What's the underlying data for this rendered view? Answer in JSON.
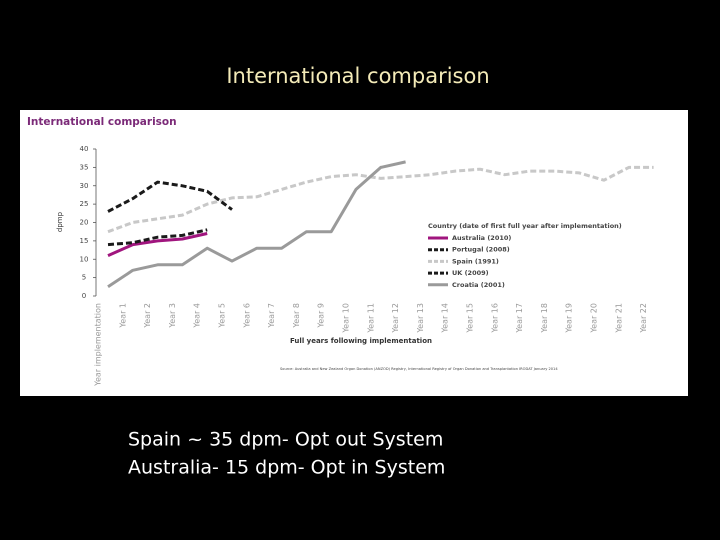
{
  "slide_title": "International comparison",
  "chart_data": {
    "type": "line",
    "title": "International comparison",
    "y_label": "dpmp",
    "x_label": "Full years following implementation",
    "source": "Source: Australia and New Zealand Organ Donation (ANZOD) Registry, International Registry of Organ Donation and Transplantation IRODAT January 2014",
    "legend_title": "Country (date of first full year after implementation)",
    "categories": [
      "Year implementation",
      "Year 1",
      "Year 2",
      "Year 3",
      "Year 4",
      "Year 5",
      "Year 6",
      "Year 7",
      "Year 8",
      "Year 9",
      "Year 10",
      "Year 11",
      "Year 12",
      "Year 13",
      "Year 14",
      "Year 15",
      "Year 16",
      "Year 17",
      "Year 18",
      "Year 19",
      "Year 20",
      "Year 21",
      "Year 22"
    ],
    "series": [
      {
        "name": "Australia (2010)",
        "color": "#a0157e",
        "dash": "solid",
        "values": [
          11,
          14,
          15,
          15.5,
          17,
          null,
          null,
          null,
          null,
          null,
          null,
          null,
          null,
          null,
          null,
          null,
          null,
          null,
          null,
          null,
          null,
          null,
          null
        ]
      },
      {
        "name": "Portugal (2008)",
        "color": "#1a1a1a",
        "dash": "dashed",
        "values": [
          14,
          14.5,
          16,
          16.5,
          18,
          null,
          null,
          null,
          null,
          null,
          null,
          null,
          null,
          null,
          null,
          null,
          null,
          null,
          null,
          null,
          null,
          null,
          null
        ]
      },
      {
        "name": "Spain (1991)",
        "color": "#c8c8c8",
        "dash": "dashed",
        "values": [
          17.5,
          20,
          21,
          22,
          25,
          26.7,
          27,
          29,
          31,
          32.5,
          33,
          32,
          32.5,
          33,
          34,
          34.5,
          33,
          34,
          34,
          33.5,
          31.5,
          35,
          35
        ]
      },
      {
        "name": "UK (2009)",
        "color": "#1a1a1a",
        "dash": "dashed",
        "values": [
          23,
          26.5,
          31,
          30,
          28.5,
          23.5,
          null,
          null,
          null,
          null,
          null,
          null,
          null,
          null,
          null,
          null,
          null,
          null,
          null,
          null,
          null,
          null,
          null
        ]
      },
      {
        "name": "Croatia (2001)",
        "color": "#9a9a9a",
        "dash": "solid",
        "values": [
          2.5,
          7,
          8.5,
          8.5,
          13,
          9.5,
          13,
          13,
          17.5,
          17.5,
          29,
          35,
          36.5,
          null,
          null,
          null,
          null,
          null,
          null,
          null,
          null,
          null,
          null
        ]
      }
    ],
    "ylim": [
      0,
      40
    ],
    "yticks": [
      0,
      5,
      10,
      15,
      20,
      25,
      30,
      35,
      40
    ]
  },
  "notes": [
    "Spain ~ 35 dpm- Opt out System",
    "Australia- 15 dpm- Opt in System"
  ]
}
